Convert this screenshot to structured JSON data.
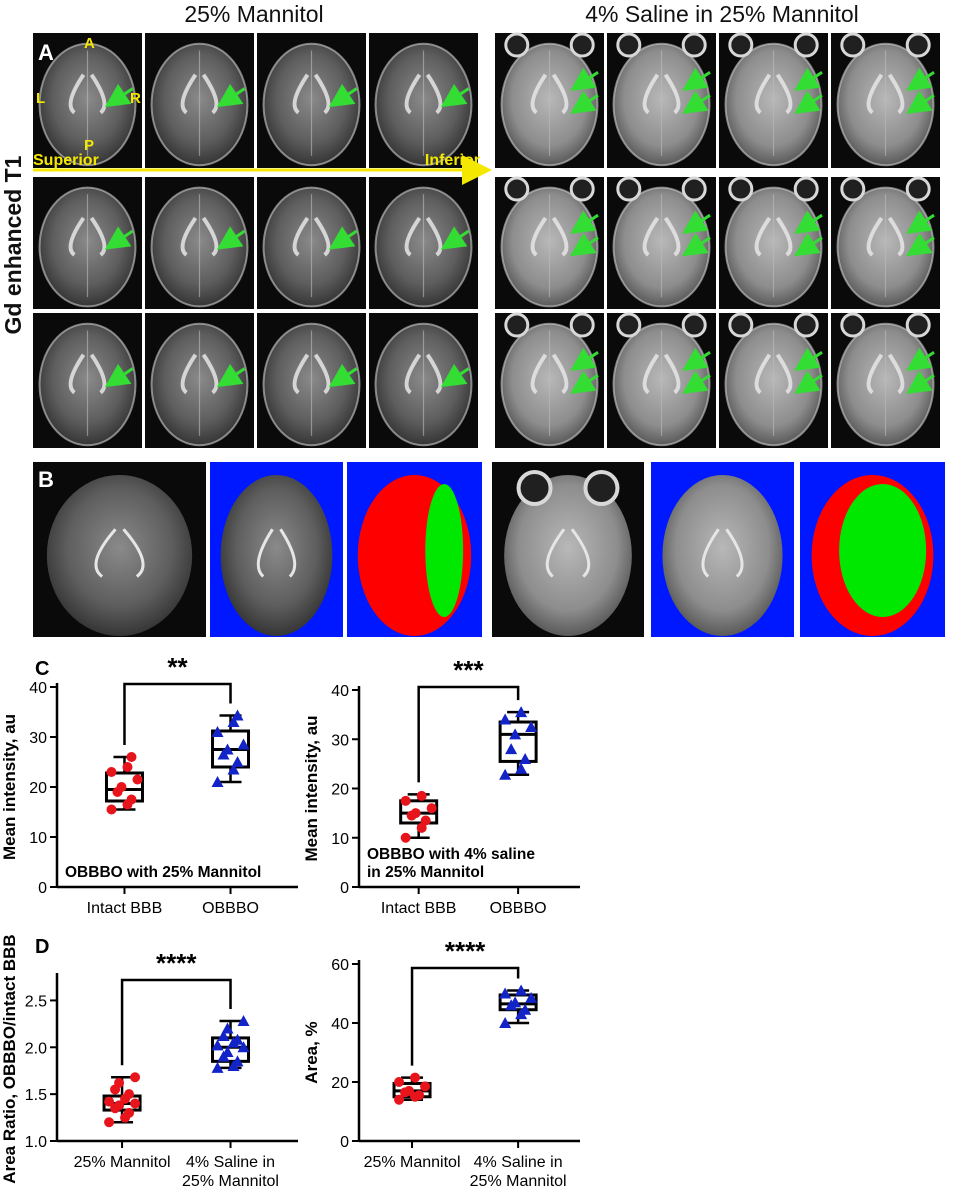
{
  "mri": {
    "left_header": "25% Mannitol",
    "right_header": "4% Saline in 25% Mannitol",
    "row_label": "Gd enhanced T1",
    "panel_a": "A",
    "panel_b": "B",
    "orient": {
      "a": "A",
      "l": "L",
      "r": "R",
      "p": "P"
    },
    "axis_superior": "Superior",
    "axis_inferior": "Inferior",
    "colors": {
      "arrow": "#33dd33",
      "label_yellow": "#f5e800",
      "mask_blue": "#0018ff",
      "mask_red": "#ff0000",
      "mask_green": "#00e800"
    }
  },
  "chart_data": [
    {
      "panel": "C",
      "type": "box",
      "categories": [
        "Intact BBB",
        "OBBBO"
      ],
      "ylabel": "Mean intensity, au",
      "ylim": [
        0,
        40
      ],
      "yticks": [
        0,
        10,
        20,
        30,
        40
      ],
      "annotation": "OBBBO with 25% Mannitol",
      "significance": "**",
      "boxes": [
        {
          "min": 15.5,
          "q1": 17.2,
          "median": 19.5,
          "q3": 22.8,
          "max": 26,
          "color": "#e8141c",
          "marker": "circle",
          "points": [
            15.5,
            16.5,
            17.5,
            19,
            20,
            21.5,
            23,
            24,
            26
          ]
        },
        {
          "min": 21,
          "q1": 24,
          "median": 27.5,
          "q3": 31.2,
          "max": 34.3,
          "color": "#1224c8",
          "marker": "triangle",
          "points": [
            21,
            23.5,
            25,
            26.5,
            27.5,
            28.5,
            31,
            33,
            34.3
          ]
        }
      ]
    },
    {
      "panel": "",
      "type": "box",
      "categories": [
        "Intact BBB",
        "OBBBO"
      ],
      "ylabel": "Mean intensity, au",
      "ylim": [
        0,
        40
      ],
      "yticks": [
        0,
        10,
        20,
        30,
        40
      ],
      "annotation": [
        "OBBBO with 4% saline",
        "in 25%  Mannitol"
      ],
      "significance": "***",
      "boxes": [
        {
          "min": 10,
          "q1": 13,
          "median": 15,
          "q3": 17.5,
          "max": 18.8,
          "color": "#e8141c",
          "marker": "circle",
          "points": [
            10,
            12,
            13.5,
            14.5,
            15,
            16,
            17.5,
            18.5
          ]
        },
        {
          "min": 22.8,
          "q1": 25.5,
          "median": 31,
          "q3": 33.5,
          "max": 35.5,
          "color": "#1224c8",
          "marker": "triangle",
          "points": [
            22.8,
            24,
            26,
            28,
            31,
            32.5,
            34,
            35.5
          ]
        }
      ]
    },
    {
      "panel": "D",
      "type": "box",
      "categories": [
        "25% Mannitol",
        [
          "4% Saline in",
          "25% Mannitol"
        ]
      ],
      "ylabel": "Area Ratio, OBBBO/intact BBB",
      "ylim": [
        1.0,
        2.75
      ],
      "yticks": [
        1.0,
        1.5,
        2.0,
        2.5
      ],
      "ytick_labels": [
        "1.0",
        "1.5",
        "2.0",
        "2.5"
      ],
      "significance": "****",
      "boxes": [
        {
          "min": 1.2,
          "q1": 1.33,
          "median": 1.4,
          "q3": 1.48,
          "max": 1.68,
          "color": "#e8141c",
          "marker": "circle",
          "points": [
            1.2,
            1.25,
            1.3,
            1.35,
            1.38,
            1.4,
            1.42,
            1.45,
            1.5,
            1.55,
            1.62,
            1.68
          ]
        },
        {
          "min": 1.78,
          "q1": 1.85,
          "median": 2.0,
          "q3": 2.1,
          "max": 2.28,
          "color": "#1224c8",
          "marker": "triangle",
          "points": [
            1.78,
            1.8,
            1.85,
            1.9,
            1.95,
            2.0,
            2.02,
            2.05,
            2.08,
            2.12,
            2.2,
            2.28
          ]
        }
      ]
    },
    {
      "panel": "",
      "type": "box",
      "categories": [
        "25% Mannitol",
        [
          "4% Saline in",
          "25% Mannitol"
        ]
      ],
      "ylabel": "Area, %",
      "ylim": [
        0,
        60
      ],
      "yticks": [
        0,
        20,
        40,
        60
      ],
      "significance": "****",
      "boxes": [
        {
          "min": 14,
          "q1": 15,
          "median": 17,
          "q3": 19.5,
          "max": 21.5,
          "color": "#e8141c",
          "marker": "circle",
          "points": [
            14,
            15,
            15.5,
            16.5,
            17,
            18.5,
            20,
            21.5
          ]
        },
        {
          "min": 40,
          "q1": 44.5,
          "median": 46.5,
          "q3": 49.5,
          "max": 51,
          "color": "#1224c8",
          "marker": "triangle",
          "points": [
            40,
            43,
            44.5,
            46,
            47,
            48.5,
            50,
            51
          ]
        }
      ]
    }
  ]
}
